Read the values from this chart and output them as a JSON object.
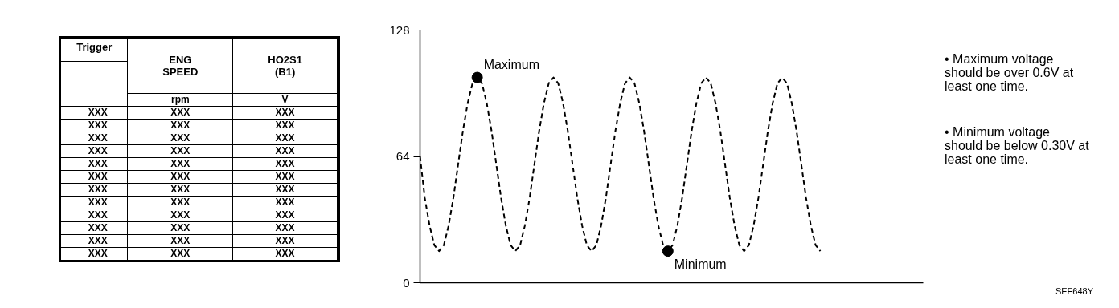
{
  "chart_data": [
    {
      "type": "other",
      "categories": [
        "Trigger",
        "ENG SPEED",
        "HO2S1 (B1)"
      ],
      "cell_labels": [
        [
          null,
          "rpm",
          "V"
        ],
        [
          "XXX",
          "XXX",
          "XXX"
        ],
        [
          "XXX",
          "XXX",
          "XXX"
        ],
        [
          "XXX",
          "XXX",
          "XXX"
        ],
        [
          "XXX",
          "XXX",
          "XXX"
        ],
        [
          "XXX",
          "XXX",
          "XXX"
        ],
        [
          "XXX",
          "XXX",
          "XXX"
        ],
        [
          "XXX",
          "XXX",
          "XXX"
        ],
        [
          "XXX",
          "XXX",
          "XXX"
        ],
        [
          "XXX",
          "XXX",
          "XXX"
        ],
        [
          "XXX",
          "XXX",
          "XXX"
        ],
        [
          "XXX",
          "XXX",
          "XXX"
        ],
        [
          "XXX",
          "XXX",
          "XXX"
        ]
      ]
    },
    {
      "type": "line",
      "categories": [
        null,
        null,
        null,
        null,
        null,
        null,
        null,
        null,
        null,
        null,
        null,
        null,
        null,
        null,
        null,
        null,
        null,
        null,
        null,
        null,
        null,
        null,
        null,
        null,
        null,
        null,
        null,
        null,
        null,
        null,
        null,
        null,
        null,
        null,
        null,
        null,
        null,
        null,
        null,
        null,
        null,
        null,
        null,
        null,
        null,
        null,
        null,
        null,
        null,
        null,
        null,
        null,
        null,
        null,
        null,
        null,
        null,
        null,
        null,
        null,
        null,
        null,
        null,
        null,
        null,
        null,
        null,
        null,
        null,
        null,
        null,
        null,
        null,
        null,
        null,
        null,
        null,
        null,
        null,
        null,
        null,
        null,
        null,
        null,
        null
      ],
      "ylim": [
        0,
        128
      ],
      "yticks": [
        0,
        64,
        128
      ],
      "tick_labels": "y",
      "line_style": "dashed",
      "series": [
        {
          "type": "line",
          "color": "#000000",
          "marker": "none",
          "values": [
            64,
            43,
            29,
            19,
            16,
            19,
            29,
            43,
            60,
            77,
            91,
            101,
            104,
            101,
            91,
            77,
            60,
            43,
            29,
            19,
            16,
            19,
            29,
            43,
            60,
            77,
            91,
            101,
            104,
            101,
            91,
            77,
            60,
            43,
            29,
            19,
            16,
            19,
            29,
            43,
            60,
            77,
            91,
            101,
            104,
            101,
            91,
            77,
            60,
            43,
            29,
            19,
            16,
            19,
            29,
            43,
            60,
            77,
            91,
            101,
            104,
            101,
            91,
            77,
            60,
            43,
            29,
            19,
            16,
            19,
            29,
            43,
            60,
            77,
            91,
            101,
            104,
            101,
            91,
            77,
            60,
            43,
            29,
            19,
            16
          ]
        },
        {
          "type": "scatter",
          "color": "#000000",
          "marker": "circle",
          "values": [
            null,
            null,
            null,
            null,
            null,
            null,
            null,
            null,
            null,
            null,
            null,
            null,
            104,
            null,
            null,
            null,
            null,
            null,
            null,
            null,
            null,
            null,
            null,
            null,
            null,
            null,
            null,
            null,
            null,
            null,
            null,
            null,
            null,
            null,
            null,
            null,
            null,
            null,
            null,
            null,
            null,
            null,
            null,
            null,
            null,
            null,
            null,
            null,
            null,
            null,
            null,
            null,
            16,
            null,
            null,
            null,
            null,
            null,
            null,
            null,
            null,
            null,
            null,
            null,
            null,
            null,
            null,
            null,
            null,
            null,
            null,
            null,
            null,
            null,
            null,
            null,
            null,
            null,
            null,
            null,
            null,
            null,
            null,
            null,
            null
          ]
        }
      ],
      "annotations": [
        "Maximum",
        "Minimum",
        "• Maximum voltage should be over 0.6V at least one time.",
        "• Minimum voltage should be below 0.30V at least one time.",
        "SEF648Y"
      ]
    }
  ]
}
